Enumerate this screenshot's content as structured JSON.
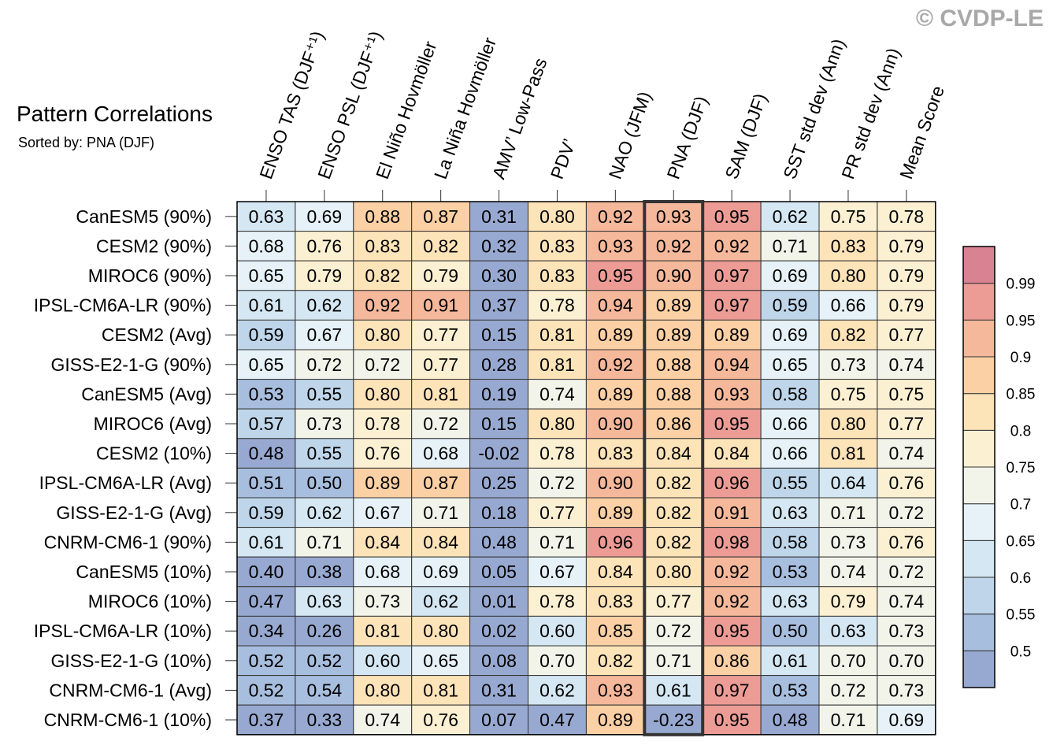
{
  "watermark": "© CVDP-LE",
  "chart_data": {
    "type": "heatmap",
    "title": "Pattern Correlations",
    "subtitle": "Sorted by: PNA (DJF)",
    "highlight_column": "PNA (DJF)",
    "columns": [
      "ENSO TAS (DJF⁺¹)",
      "ENSO PSL (DJF⁺¹)",
      "El Niño Hovmöller",
      "La Niña Hovmöller",
      "AMV’ Low-Pass",
      "PDV’",
      "NAO (JFM)",
      "PNA (DJF)",
      "SAM (DJF)",
      "SST std dev (Ann)",
      "PR std dev (Ann)",
      "Mean Score"
    ],
    "rows": [
      {
        "name": "CanESM5 (90%)",
        "values": [
          0.63,
          0.69,
          0.88,
          0.87,
          0.31,
          0.8,
          0.92,
          0.93,
          0.95,
          0.62,
          0.75,
          0.78
        ]
      },
      {
        "name": "CESM2 (90%)",
        "values": [
          0.68,
          0.76,
          0.83,
          0.82,
          0.32,
          0.83,
          0.93,
          0.92,
          0.92,
          0.71,
          0.83,
          0.79
        ]
      },
      {
        "name": "MIROC6 (90%)",
        "values": [
          0.65,
          0.79,
          0.82,
          0.79,
          0.3,
          0.83,
          0.95,
          0.9,
          0.97,
          0.69,
          0.8,
          0.79
        ]
      },
      {
        "name": "IPSL-CM6A-LR (90%)",
        "values": [
          0.61,
          0.62,
          0.92,
          0.91,
          0.37,
          0.78,
          0.94,
          0.89,
          0.97,
          0.59,
          0.66,
          0.79
        ]
      },
      {
        "name": "CESM2 (Avg)",
        "values": [
          0.59,
          0.67,
          0.8,
          0.77,
          0.15,
          0.81,
          0.89,
          0.89,
          0.89,
          0.69,
          0.82,
          0.77
        ]
      },
      {
        "name": "GISS-E2-1-G (90%)",
        "values": [
          0.65,
          0.72,
          0.72,
          0.77,
          0.28,
          0.81,
          0.92,
          0.88,
          0.94,
          0.65,
          0.73,
          0.74
        ]
      },
      {
        "name": "CanESM5 (Avg)",
        "values": [
          0.53,
          0.55,
          0.8,
          0.81,
          0.19,
          0.74,
          0.89,
          0.88,
          0.93,
          0.58,
          0.75,
          0.75
        ]
      },
      {
        "name": "MIROC6 (Avg)",
        "values": [
          0.57,
          0.73,
          0.78,
          0.72,
          0.15,
          0.8,
          0.9,
          0.86,
          0.95,
          0.66,
          0.8,
          0.77
        ]
      },
      {
        "name": "CESM2 (10%)",
        "values": [
          0.48,
          0.55,
          0.76,
          0.68,
          -0.02,
          0.78,
          0.83,
          0.84,
          0.84,
          0.66,
          0.81,
          0.74
        ]
      },
      {
        "name": "IPSL-CM6A-LR (Avg)",
        "values": [
          0.51,
          0.5,
          0.89,
          0.87,
          0.25,
          0.72,
          0.9,
          0.82,
          0.96,
          0.55,
          0.64,
          0.76
        ]
      },
      {
        "name": "GISS-E2-1-G (Avg)",
        "values": [
          0.59,
          0.62,
          0.67,
          0.71,
          0.18,
          0.77,
          0.89,
          0.82,
          0.91,
          0.63,
          0.71,
          0.72
        ]
      },
      {
        "name": "CNRM-CM6-1 (90%)",
        "values": [
          0.61,
          0.71,
          0.84,
          0.84,
          0.48,
          0.71,
          0.96,
          0.82,
          0.98,
          0.58,
          0.73,
          0.76
        ]
      },
      {
        "name": "CanESM5 (10%)",
        "values": [
          0.4,
          0.38,
          0.68,
          0.69,
          0.05,
          0.67,
          0.84,
          0.8,
          0.92,
          0.53,
          0.74,
          0.72
        ]
      },
      {
        "name": "MIROC6 (10%)",
        "values": [
          0.47,
          0.63,
          0.73,
          0.62,
          0.01,
          0.78,
          0.83,
          0.77,
          0.92,
          0.63,
          0.79,
          0.74
        ]
      },
      {
        "name": "IPSL-CM6A-LR (10%)",
        "values": [
          0.34,
          0.26,
          0.81,
          0.8,
          0.02,
          0.6,
          0.85,
          0.72,
          0.95,
          0.5,
          0.63,
          0.73
        ]
      },
      {
        "name": "GISS-E2-1-G (10%)",
        "values": [
          0.52,
          0.52,
          0.6,
          0.65,
          0.08,
          0.7,
          0.82,
          0.71,
          0.86,
          0.61,
          0.7,
          0.7
        ]
      },
      {
        "name": "CNRM-CM6-1 (Avg)",
        "values": [
          0.52,
          0.54,
          0.8,
          0.81,
          0.31,
          0.62,
          0.93,
          0.61,
          0.97,
          0.53,
          0.72,
          0.73
        ]
      },
      {
        "name": "CNRM-CM6-1 (10%)",
        "values": [
          0.37,
          0.33,
          0.74,
          0.76,
          0.07,
          0.47,
          0.89,
          -0.23,
          0.95,
          0.48,
          0.71,
          0.69
        ]
      }
    ],
    "colorbar": {
      "levels": [
        0.5,
        0.55,
        0.6,
        0.65,
        0.7,
        0.75,
        0.8,
        0.85,
        0.9,
        0.95,
        0.99
      ],
      "tick_labels": [
        "0.5",
        "0.55",
        "0.6",
        "0.65",
        "0.7",
        "0.75",
        "0.8",
        "0.85",
        "0.9",
        "0.95",
        "0.99"
      ],
      "colors": [
        "#98a9d1",
        "#a8bedf",
        "#bfd6ea",
        "#d4e7f2",
        "#e6f2f7",
        "#f2f4ea",
        "#fcf0d2",
        "#fde3b8",
        "#fbd0a4",
        "#f5b89a",
        "#ec9c95",
        "#d98292"
      ]
    }
  }
}
